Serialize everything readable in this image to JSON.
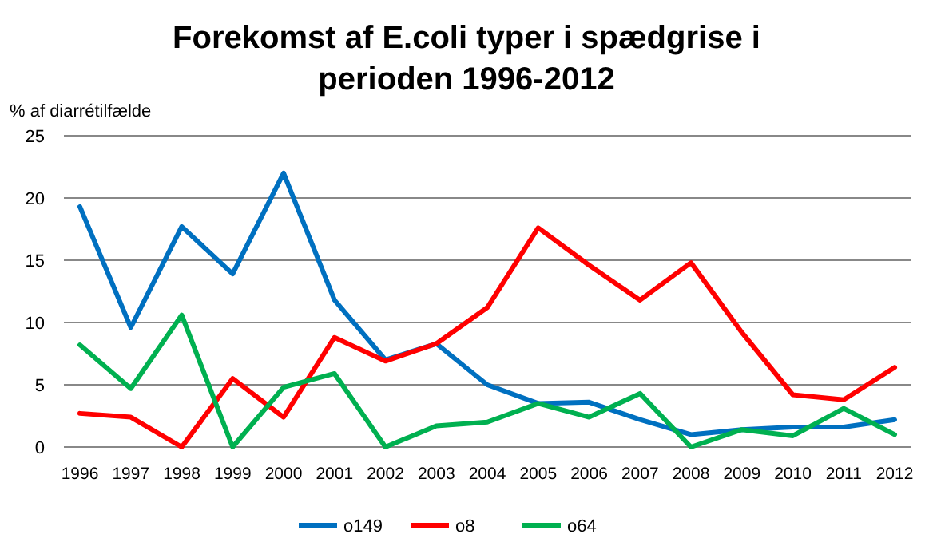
{
  "chart_data": {
    "type": "line",
    "title": "Forekomst af E.coli typer i spædgrise i perioden 1996-2012",
    "ylabel": "% af diarrétilfælde",
    "categories": [
      "1996",
      "1997",
      "1998",
      "1999",
      "2000",
      "2001",
      "2002",
      "2003",
      "2004",
      "2005",
      "2006",
      "2007",
      "2008",
      "2009",
      "2010",
      "2011",
      "2012"
    ],
    "series": [
      {
        "name": "o149",
        "color": "#0070c0",
        "values": [
          19.3,
          9.6,
          17.7,
          13.9,
          22,
          11.8,
          7,
          8.3,
          5,
          3.5,
          3.6,
          2.2,
          1,
          1.4,
          1.6,
          1.6,
          2.2
        ]
      },
      {
        "name": "o8",
        "color": "#ff0000",
        "values": [
          2.7,
          2.4,
          0,
          5.5,
          2.4,
          8.8,
          6.9,
          8.3,
          11.2,
          17.6,
          14.6,
          11.8,
          14.8,
          9.2,
          4.2,
          3.8,
          6.4
        ]
      },
      {
        "name": "o64",
        "color": "#00b050",
        "values": [
          8.2,
          4.7,
          10.6,
          0,
          4.8,
          5.9,
          0,
          1.7,
          2,
          3.5,
          2.4,
          4.3,
          0,
          1.4,
          0.9,
          3.1,
          1
        ]
      }
    ],
    "ylim": [
      0,
      25
    ],
    "yticks": [
      0,
      5,
      10,
      15,
      20,
      25
    ],
    "grid": "y",
    "legend": "bottom",
    "marker": "none",
    "line_style": "solid"
  }
}
